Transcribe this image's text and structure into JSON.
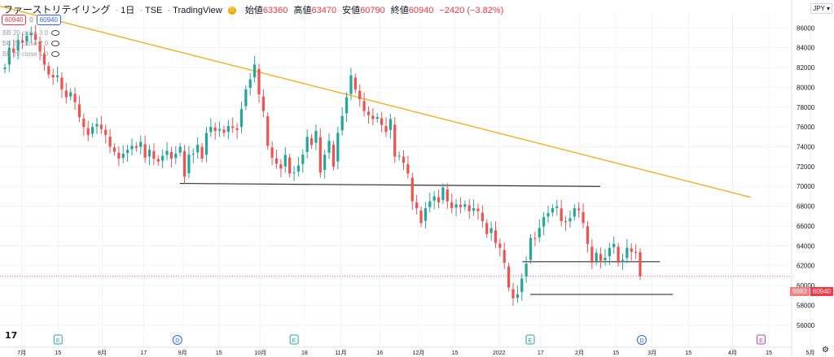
{
  "header": {
    "symbol": "ファーストリテイリング",
    "interval": "1日",
    "exchange": "TSE",
    "source": "TradingView",
    "open_label": "始値",
    "open": "63360",
    "high_label": "高値",
    "high": "63470",
    "low_label": "安値",
    "low": "60790",
    "close_label": "終値",
    "close": "60940",
    "change": "−2420 (−3.82%)"
  },
  "badges": {
    "left": "60940",
    "mid": "0",
    "right": "60940"
  },
  "indicators": [
    "BB 20 close 3 0",
    "BB 20 close 2 0",
    "BB 20 close 1 0"
  ],
  "currency": "JPY",
  "last_price": {
    "symbol": "9983",
    "value": "60940"
  },
  "colors": {
    "up": "#26a69a",
    "down": "#ef5350",
    "trendline": "#f7a600",
    "support": "#333333"
  },
  "chart_data": {
    "type": "candlestick",
    "y_ticks": [
      "86000",
      "84000",
      "82000",
      "80000",
      "78000",
      "76000",
      "74000",
      "72000",
      "70000",
      "68000",
      "66000",
      "64000",
      "62000",
      "60000",
      "58000",
      "56000"
    ],
    "ylim": [
      55000,
      87500
    ],
    "x_ticks": [
      {
        "label": "7月",
        "date": "2021-07-01"
      },
      {
        "label": "15",
        "date": "2021-07-15"
      },
      {
        "label": "8月",
        "date": "2021-08-01"
      },
      {
        "label": "17",
        "date": "2021-08-17"
      },
      {
        "label": "9月",
        "date": "2021-09-01"
      },
      {
        "label": "15",
        "date": "2021-09-15"
      },
      {
        "label": "10月",
        "date": "2021-10-01"
      },
      {
        "label": "18",
        "date": "2021-10-18"
      },
      {
        "label": "11月",
        "date": "2021-11-01"
      },
      {
        "label": "16",
        "date": "2021-11-16"
      },
      {
        "label": "12月",
        "date": "2021-12-01"
      },
      {
        "label": "15",
        "date": "2021-12-15"
      },
      {
        "label": "2022",
        "date": "2022-01-01"
      },
      {
        "label": "17",
        "date": "2022-01-17"
      },
      {
        "label": "2月",
        "date": "2022-02-01"
      },
      {
        "label": "15",
        "date": "2022-02-15"
      },
      {
        "label": "3月",
        "date": "2022-03-01"
      },
      {
        "label": "15",
        "date": "2022-03-15"
      },
      {
        "label": "4月",
        "date": "2022-04-01"
      },
      {
        "label": "15",
        "date": "2022-04-15"
      },
      {
        "label": "5月",
        "date": "2022-05-01"
      }
    ],
    "event_markers": [
      {
        "label": "E",
        "date": "2021-07-15"
      },
      {
        "label": "D",
        "date": "2021-08-30"
      },
      {
        "label": "E",
        "date": "2021-10-14"
      },
      {
        "label": "E",
        "date": "2022-01-13"
      },
      {
        "label": "D",
        "date": "2022-02-25"
      },
      {
        "label": "E",
        "date": "2022-04-12"
      }
    ],
    "lines": [
      {
        "kind": "trendline",
        "from": {
          "date": "2021-06-18",
          "value": 88500
        },
        "to": {
          "date": "2022-04-08",
          "value": 68900
        }
      },
      {
        "kind": "support",
        "from": {
          "date": "2021-08-31",
          "value": 70300
        },
        "to": {
          "date": "2022-02-09",
          "value": 70000
        }
      },
      {
        "kind": "support",
        "from": {
          "date": "2022-01-10",
          "value": 62400
        },
        "to": {
          "date": "2022-03-04",
          "value": 62400
        }
      },
      {
        "kind": "support",
        "from": {
          "date": "2022-01-13",
          "value": 59100
        },
        "to": {
          "date": "2022-03-09",
          "value": 59100
        }
      }
    ],
    "closes": [
      82000,
      84000,
      83500,
      84800,
      84500,
      85200,
      85500,
      84800,
      83600,
      82300,
      81300,
      81000,
      81200,
      79800,
      79000,
      79500,
      78500,
      77000,
      76000,
      75200,
      76000,
      76300,
      75800,
      75200,
      74000,
      73500,
      72800,
      73300,
      73700,
      74100,
      73900,
      74500,
      72900,
      73700,
      72800,
      72500,
      73100,
      73600,
      72800,
      73300,
      74000,
      71000,
      73200,
      73300,
      74200,
      72800,
      75400,
      76000,
      75600,
      75800,
      75400,
      76100,
      75900,
      75700,
      77800,
      79800,
      80800,
      82300,
      79300,
      77600,
      74100,
      72900,
      72300,
      71800,
      73200,
      71300,
      71400,
      72100,
      73200,
      75000,
      74200,
      75600,
      71400,
      73200,
      74600,
      72000,
      75400,
      77100,
      79000,
      81200,
      79800,
      78800,
      77600,
      77200,
      76800,
      77000,
      76200,
      75500,
      76800,
      73000,
      73100,
      72400,
      71300,
      68500,
      67800,
      66300,
      67800,
      68500,
      69000,
      68400,
      69900,
      68500,
      67800,
      68200,
      67900,
      68200,
      67500,
      67800,
      67500,
      66500,
      65200,
      65800,
      64300,
      63800,
      62300,
      59800,
      58700,
      59100,
      60700,
      62200,
      64800,
      64700,
      65800,
      66900,
      67300,
      67800,
      68000,
      66500,
      66400,
      66800,
      67800,
      67600,
      66300,
      64200,
      62300,
      63300,
      62500,
      62800,
      63800,
      64200,
      62300,
      62600,
      63800,
      63400,
      63300,
      60940
    ]
  }
}
